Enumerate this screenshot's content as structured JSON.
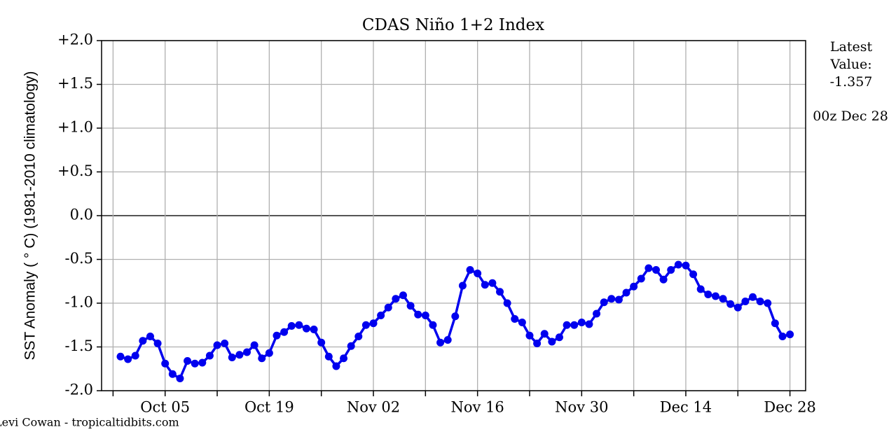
{
  "chart_data": {
    "type": "line",
    "title": "CDAS Niño 1+2 Index",
    "y_label": "SST Anomaly ( ° C) (1981-2010 climatology)",
    "latest_label": [
      "Latest",
      "Value:"
    ],
    "latest_value": -1.357,
    "valid_time": "00z Dec 28",
    "credit": "Levi Cowan - tropicaltidbits.com",
    "x": [
      "Sep 29",
      "Sep 30",
      "Oct 01",
      "Oct 02",
      "Oct 03",
      "Oct 04",
      "Oct 05",
      "Oct 06",
      "Oct 07",
      "Oct 08",
      "Oct 09",
      "Oct 10",
      "Oct 11",
      "Oct 12",
      "Oct 13",
      "Oct 14",
      "Oct 15",
      "Oct 16",
      "Oct 17",
      "Oct 18",
      "Oct 19",
      "Oct 20",
      "Oct 21",
      "Oct 22",
      "Oct 23",
      "Oct 24",
      "Oct 25",
      "Oct 26",
      "Oct 27",
      "Oct 28",
      "Oct 29",
      "Oct 30",
      "Oct 31",
      "Nov 01",
      "Nov 02",
      "Nov 03",
      "Nov 04",
      "Nov 05",
      "Nov 06",
      "Nov 07",
      "Nov 08",
      "Nov 09",
      "Nov 10",
      "Nov 11",
      "Nov 12",
      "Nov 13",
      "Nov 14",
      "Nov 15",
      "Nov 16",
      "Nov 17",
      "Nov 18",
      "Nov 19",
      "Nov 20",
      "Nov 21",
      "Nov 22",
      "Nov 23",
      "Nov 24",
      "Nov 25",
      "Nov 26",
      "Nov 27",
      "Nov 28",
      "Nov 29",
      "Nov 30",
      "Dec 01",
      "Dec 02",
      "Dec 03",
      "Dec 04",
      "Dec 05",
      "Dec 06",
      "Dec 07",
      "Dec 08",
      "Dec 09",
      "Dec 10",
      "Dec 11",
      "Dec 12",
      "Dec 13",
      "Dec 14",
      "Dec 15",
      "Dec 16",
      "Dec 17",
      "Dec 18",
      "Dec 19",
      "Dec 20",
      "Dec 21",
      "Dec 22",
      "Dec 23",
      "Dec 24",
      "Dec 25",
      "Dec 26",
      "Dec 27",
      "Dec 28"
    ],
    "series": [
      {
        "color": "#0000ee",
        "values": [
          -1.61,
          -1.64,
          -1.6,
          -1.43,
          -1.38,
          -1.46,
          -1.69,
          -1.81,
          -1.86,
          -1.66,
          -1.69,
          -1.68,
          -1.6,
          -1.48,
          -1.46,
          -1.62,
          -1.59,
          -1.56,
          -1.48,
          -1.63,
          -1.57,
          -1.37,
          -1.33,
          -1.26,
          -1.25,
          -1.29,
          -1.3,
          -1.45,
          -1.61,
          -1.72,
          -1.63,
          -1.49,
          -1.38,
          -1.25,
          -1.23,
          -1.14,
          -1.05,
          -0.95,
          -0.91,
          -1.03,
          -1.13,
          -1.14,
          -1.25,
          -1.45,
          -1.42,
          -1.15,
          -0.8,
          -0.62,
          -0.66,
          -0.79,
          -0.77,
          -0.87,
          -1.0,
          -1.18,
          -1.22,
          -1.37,
          -1.46,
          -1.35,
          -1.44,
          -1.39,
          -1.25,
          -1.25,
          -1.22,
          -1.24,
          -1.12,
          -0.99,
          -0.95,
          -0.96,
          -0.88,
          -0.81,
          -0.72,
          -0.6,
          -0.62,
          -0.73,
          -0.62,
          -0.56,
          -0.57,
          -0.67,
          -0.84,
          -0.9,
          -0.92,
          -0.95,
          -1.01,
          -1.05,
          -0.98,
          -0.93,
          -0.98,
          -1.0,
          -1.23,
          -1.38,
          -1.357
        ]
      }
    ],
    "xticks": [
      "Oct 05",
      "Oct 19",
      "Nov 02",
      "Nov 16",
      "Nov 30",
      "Dec 14",
      "Dec 28"
    ],
    "ylim": [
      -2.0,
      2.0
    ],
    "yticks": [
      {
        "value": -2.0,
        "label": "-2.0"
      },
      {
        "value": -1.5,
        "label": "-1.5"
      },
      {
        "value": -1.0,
        "label": "-1.0"
      },
      {
        "value": -0.5,
        "label": "-0.5"
      },
      {
        "value": 0.0,
        "label": "0.0"
      },
      {
        "value": 0.5,
        "label": "+0.5"
      },
      {
        "value": 1.0,
        "label": "+1.0"
      },
      {
        "value": 1.5,
        "label": "+1.5"
      },
      {
        "value": 2.0,
        "label": "+2.0"
      }
    ],
    "grid": true
  }
}
